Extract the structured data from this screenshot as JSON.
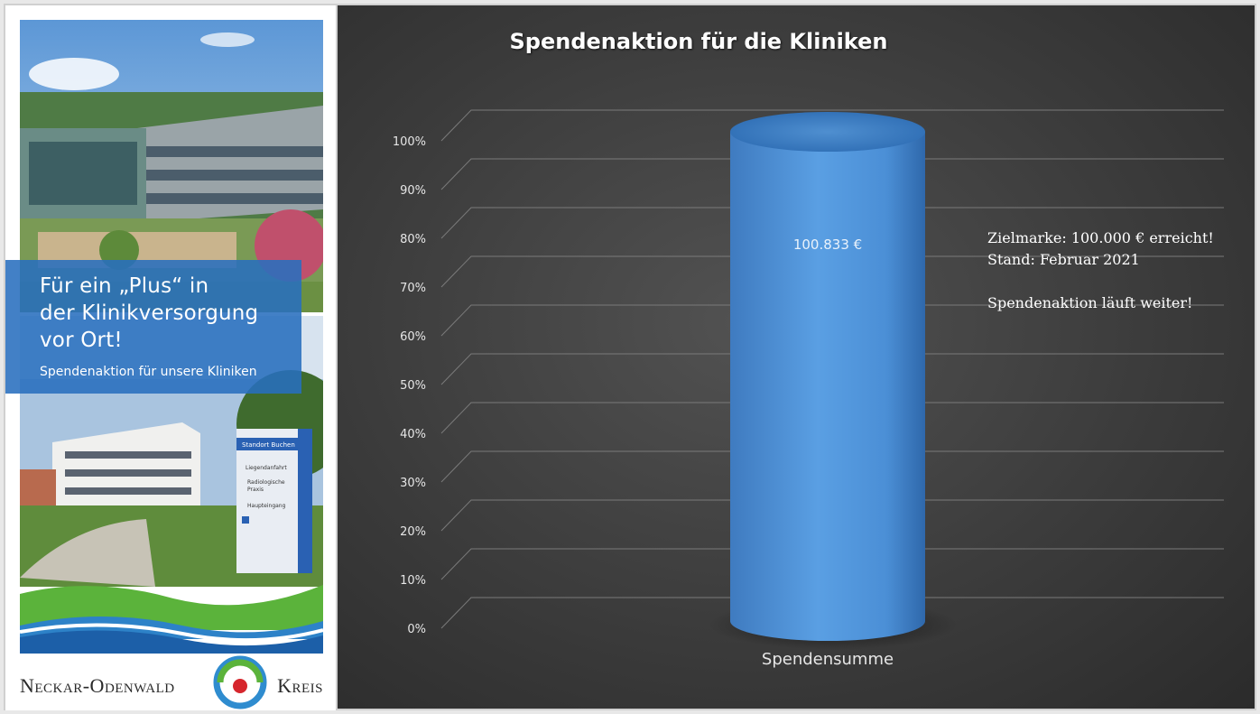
{
  "brochure": {
    "headline_lines": [
      "Für ein „Plus“ in",
      "der Klinikversorgung",
      "vor Ort!"
    ],
    "subline": "Spendenaktion für unsere Kliniken",
    "sign_texts": [
      "Standort Buchen",
      "Liegendanfahrt",
      "Radiologische",
      "Praxis",
      "Haupteingang"
    ],
    "logo_left": "Neckar-Odenwald",
    "logo_right": "Kreis"
  },
  "chart_data": {
    "type": "bar",
    "title": "Spendenaktion für die Kliniken",
    "categories": [
      "Spendensumme"
    ],
    "values": [
      100
    ],
    "data_labels": [
      "100.833 €"
    ],
    "y_ticks": [
      "0%",
      "10%",
      "20%",
      "30%",
      "40%",
      "50%",
      "60%",
      "70%",
      "80%",
      "90%",
      "100%"
    ],
    "ylim": [
      0,
      100
    ],
    "grid": true,
    "bar_shape": "cylinder",
    "colors": {
      "bar": "#4a8fd8",
      "background": "#3c3c3c",
      "grid": "#7a7a7a"
    },
    "annotations": [
      "Zielmarke: 100.000 € erreicht!",
      "Stand: Februar 2021",
      "",
      "Spendenaktion läuft weiter!"
    ]
  }
}
